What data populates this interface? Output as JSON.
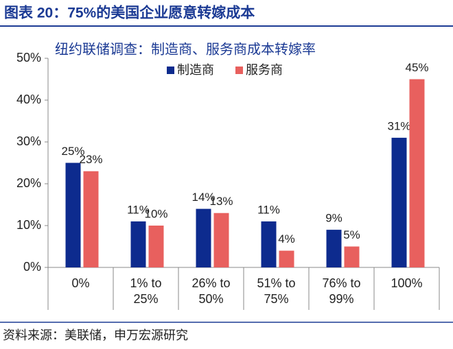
{
  "header": {
    "title": "图表 20：75%的美国企业愿意转嫁成本"
  },
  "chart_data": {
    "type": "bar",
    "title": "纽约联储调查：制造商、服务商成本转嫁率",
    "categories": [
      "0%",
      "1% to 25%",
      "26% to 50%",
      "51% to 75%",
      "76% to 99%",
      "100%"
    ],
    "series": [
      {
        "name": "制造商",
        "color": "#0d2b8e",
        "values": [
          25,
          11,
          14,
          11,
          9,
          31
        ],
        "value_labels": [
          "25%",
          "11%",
          "14%",
          "11%",
          "9%",
          "31%"
        ]
      },
      {
        "name": "服务商",
        "color": "#e8605e",
        "values": [
          23,
          10,
          13,
          4,
          5,
          45
        ],
        "value_labels": [
          "23%",
          "10%",
          "13%",
          "4%",
          "5%",
          "45%"
        ]
      }
    ],
    "ylim": [
      0,
      50
    ],
    "yticks": [
      {
        "value": 0,
        "label": "0%"
      },
      {
        "value": 10,
        "label": "10%"
      },
      {
        "value": 20,
        "label": "20%"
      },
      {
        "value": 30,
        "label": "30%"
      },
      {
        "value": 40,
        "label": "40%"
      },
      {
        "value": 50,
        "label": "50%"
      }
    ],
    "grid": false
  },
  "footer": {
    "source": "资料来源：美联储，申万宏源研究"
  }
}
